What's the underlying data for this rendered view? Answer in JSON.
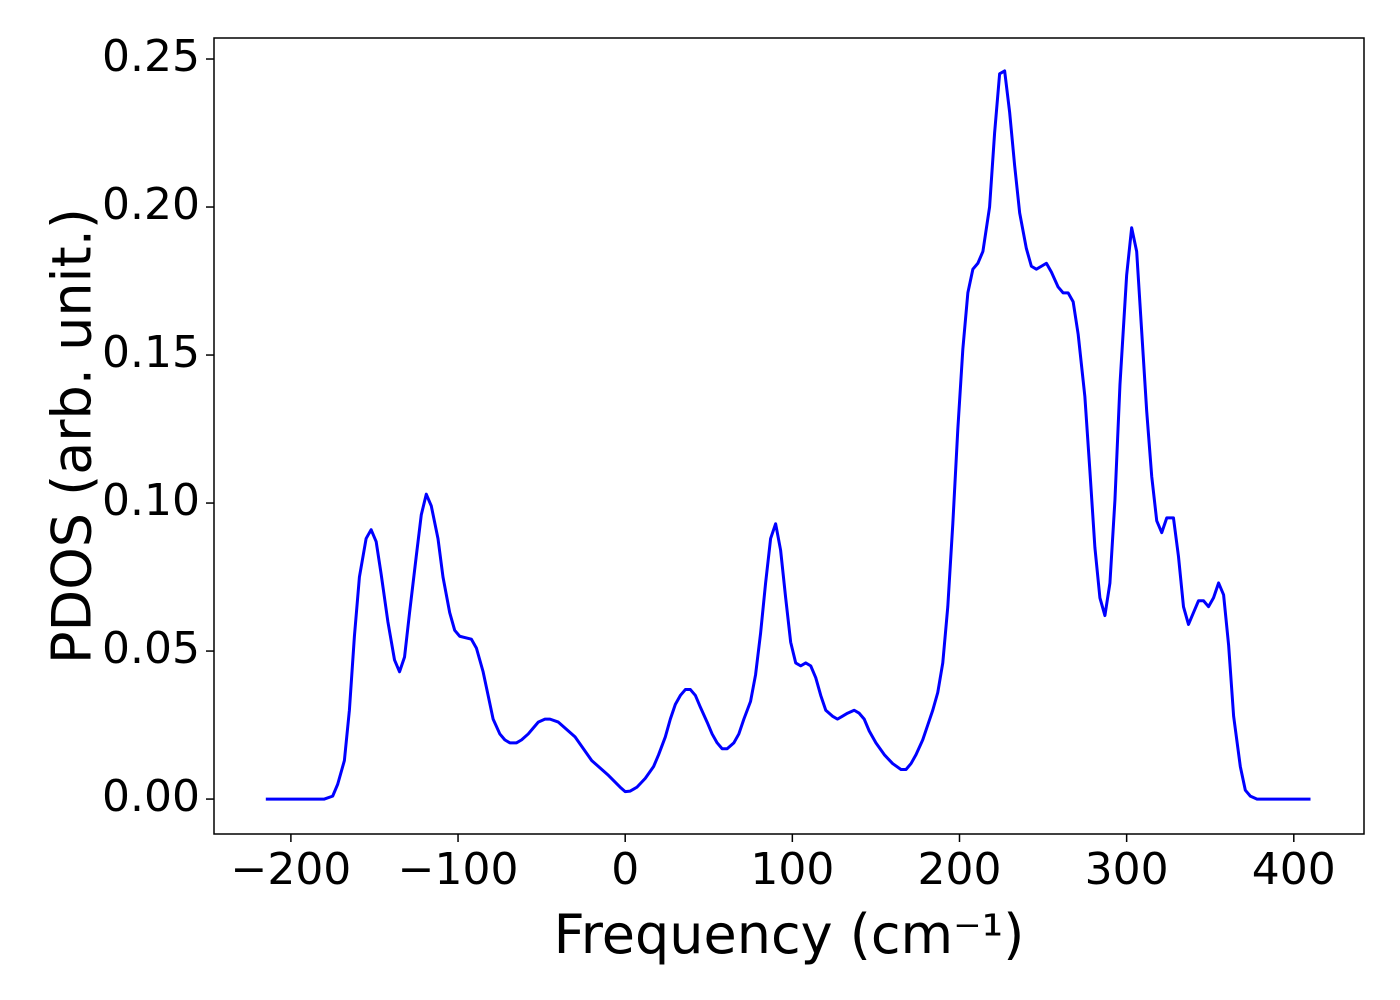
{
  "chart_data": {
    "type": "line",
    "xlabel": "Frequency (cm⁻¹)",
    "ylabel": "PDOS (arb. unit.)",
    "color": "#0000ff",
    "xlim": [
      -246,
      442
    ],
    "ylim": [
      -0.0118,
      0.2571
    ],
    "xticks": [
      {
        "value": -200,
        "label": "−200"
      },
      {
        "value": -100,
        "label": "−100"
      },
      0,
      100,
      200,
      300,
      400
    ],
    "yticks": [
      {
        "value": 0,
        "label": "0.00"
      },
      {
        "value": 0.05,
        "label": "0.05"
      },
      {
        "value": 0.1,
        "label": "0.10"
      },
      {
        "value": 0.15,
        "label": "0.15"
      },
      {
        "value": 0.2,
        "label": "0.20"
      },
      {
        "value": 0.25,
        "label": "0.25"
      }
    ],
    "x": [
      -215,
      -180,
      -175,
      -172,
      -168,
      -165,
      -162,
      -159,
      -155,
      -152,
      -149,
      -146,
      -142,
      -138,
      -135,
      -132,
      -129,
      -125,
      -122,
      -119,
      -116,
      -112,
      -109,
      -105,
      -102,
      -99,
      -92,
      -89,
      -85,
      -82,
      -79,
      -75,
      -72,
      -69,
      -65,
      -62,
      -58,
      -55,
      -52,
      -48,
      -45,
      -40,
      -30,
      -20,
      -10,
      -3,
      0,
      3,
      7,
      12,
      17,
      20,
      24,
      27,
      30,
      33,
      36,
      39,
      42,
      45,
      49,
      52,
      55,
      58,
      61,
      65,
      68,
      71,
      75,
      78,
      81,
      84,
      87,
      90,
      93,
      96,
      99,
      102,
      105,
      108,
      111,
      114,
      117,
      120,
      124,
      127,
      130,
      133,
      137,
      140,
      143,
      146,
      150,
      155,
      160,
      165,
      168,
      171,
      174,
      178,
      181,
      184,
      187,
      190,
      193,
      196,
      199,
      202,
      205,
      208,
      211,
      214,
      218,
      221,
      224,
      227,
      230,
      233,
      236,
      240,
      243,
      246,
      249,
      252,
      255,
      259,
      262,
      265,
      268,
      271,
      275,
      278,
      281,
      284,
      287,
      290,
      293,
      296,
      300,
      303,
      306,
      309,
      312,
      315,
      318,
      321,
      324,
      328,
      331,
      334,
      337,
      340,
      343,
      346,
      349,
      352,
      355,
      358,
      361,
      364,
      368,
      371,
      374,
      378,
      410
    ],
    "values": [
      0,
      0,
      0.001,
      0.005,
      0.013,
      0.03,
      0.055,
      0.075,
      0.088,
      0.091,
      0.087,
      0.076,
      0.06,
      0.047,
      0.043,
      0.048,
      0.063,
      0.082,
      0.096,
      0.103,
      0.099,
      0.088,
      0.075,
      0.063,
      0.057,
      0.055,
      0.054,
      0.051,
      0.043,
      0.035,
      0.027,
      0.022,
      0.02,
      0.019,
      0.019,
      0.02,
      0.022,
      0.024,
      0.026,
      0.027,
      0.027,
      0.026,
      0.021,
      0.013,
      0.008,
      0.004,
      0.0025,
      0.0027,
      0.004,
      0.007,
      0.011,
      0.015,
      0.021,
      0.027,
      0.032,
      0.035,
      0.037,
      0.037,
      0.035,
      0.031,
      0.026,
      0.022,
      0.019,
      0.017,
      0.017,
      0.019,
      0.022,
      0.027,
      0.033,
      0.042,
      0.056,
      0.073,
      0.088,
      0.093,
      0.084,
      0.068,
      0.053,
      0.046,
      0.045,
      0.046,
      0.045,
      0.041,
      0.035,
      0.03,
      0.028,
      0.027,
      0.028,
      0.029,
      0.03,
      0.029,
      0.027,
      0.023,
      0.019,
      0.015,
      0.012,
      0.01,
      0.01,
      0.012,
      0.015,
      0.02,
      0.025,
      0.03,
      0.036,
      0.046,
      0.065,
      0.093,
      0.125,
      0.152,
      0.171,
      0.179,
      0.181,
      0.185,
      0.2,
      0.225,
      0.245,
      0.246,
      0.232,
      0.214,
      0.198,
      0.186,
      0.18,
      0.179,
      0.18,
      0.181,
      0.178,
      0.173,
      0.171,
      0.171,
      0.168,
      0.157,
      0.136,
      0.111,
      0.085,
      0.068,
      0.062,
      0.073,
      0.101,
      0.14,
      0.177,
      0.193,
      0.185,
      0.158,
      0.131,
      0.109,
      0.094,
      0.09,
      0.095,
      0.095,
      0.082,
      0.065,
      0.059,
      0.063,
      0.067,
      0.067,
      0.065,
      0.068,
      0.073,
      0.069,
      0.052,
      0.028,
      0.011,
      0.003,
      0.001,
      0,
      0
    ]
  }
}
